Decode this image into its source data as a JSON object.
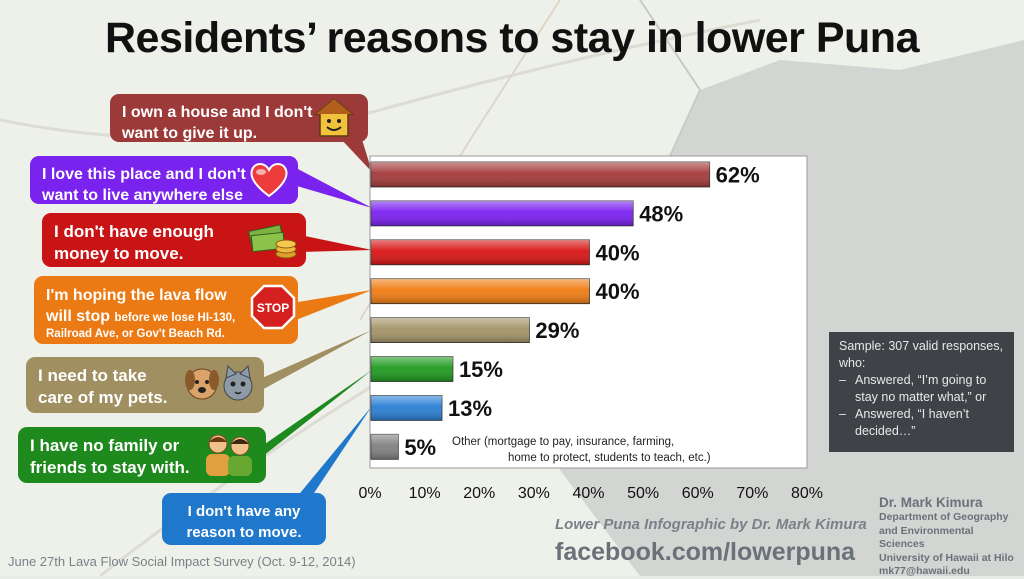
{
  "title": "Residents’ reasons to stay in lower Puna",
  "chart_data": {
    "type": "bar",
    "orientation": "horizontal",
    "categories": [
      "I own a house and I don't want to give it up.",
      "I love this place and I don't want to live anywhere else",
      "I don't have enough money to move.",
      "I'm hoping the lava flow will stop before we lose HI-130, Railroad Ave, or Gov't Beach Rd.",
      "I need to take care of my pets.",
      "I have no family or friends to stay with.",
      "I don't have any reason to move.",
      "Other"
    ],
    "values": [
      62,
      48,
      40,
      40,
      29,
      15,
      13,
      5
    ],
    "value_labels": [
      "62%",
      "48%",
      "40%",
      "40%",
      "29%",
      "15%",
      "13%",
      "5%"
    ],
    "colors": [
      "#a43a3a",
      "#7a1ff0",
      "#d91414",
      "#f07c12",
      "#a39368",
      "#1f9a1f",
      "#2a7fd4",
      "#808080"
    ],
    "xlim": [
      0,
      80
    ],
    "x_ticks": [
      "0%",
      "10%",
      "20%",
      "30%",
      "40%",
      "50%",
      "60%",
      "70%",
      "80%"
    ],
    "grid": false
  },
  "bubbles": [
    {
      "line1": "I own a house and I don't",
      "line2": "want to give it up.",
      "color": "#9c3a3a",
      "icon": "house-icon"
    },
    {
      "line1": "I love this place and I don't",
      "line2": "want to live anywhere else",
      "color": "#7a22ee",
      "icon": "heart-icon"
    },
    {
      "line1": "I don't have enough",
      "line2": "money to move.",
      "color": "#c81414",
      "icon": "money-icon"
    },
    {
      "line1": "I'm hoping the lava flow",
      "line2a": "will stop",
      "line2b": "before we lose HI-130,",
      "line3": "Railroad  Ave, or Gov't Beach Rd.",
      "color": "#ec7a14",
      "icon": "stop-sign-icon",
      "stop_text": "STOP"
    },
    {
      "line1": "I need to take",
      "line2": "care of my pets.",
      "color": "#a08f60",
      "icon": "pets-icon"
    },
    {
      "line1": "I have no family or",
      "line2": "friends to stay with.",
      "color": "#1e8a1e",
      "icon": "people-icon"
    },
    {
      "line1": "I don't have any",
      "line2": "reason to move.",
      "color": "#1f78cc"
    }
  ],
  "other_note": {
    "line1": "Other (mortgage to pay, insurance, farming,",
    "line2": "home to protect, students to teach, etc.)"
  },
  "sample_note": {
    "intro": "Sample: 307 valid responses, who:",
    "items": [
      "Answered, “I’m going to stay no matter what,” or",
      "Answered,  “I haven’t decided…”"
    ]
  },
  "credit": {
    "line1": "Lower Puna Infographic by Dr. Mark Kimura",
    "line2": "facebook.com/lowerpuna"
  },
  "author": {
    "name": "Dr. Mark Kimura",
    "dept1": "Department of Geography",
    "dept2": "and Environmental  Sciences",
    "univ": "University of Hawaii at Hilo",
    "email": "mk77@hawaii.edu"
  },
  "survey": "June 27th Lava Flow Social Impact Survey (Oct. 9-12, 2014)"
}
